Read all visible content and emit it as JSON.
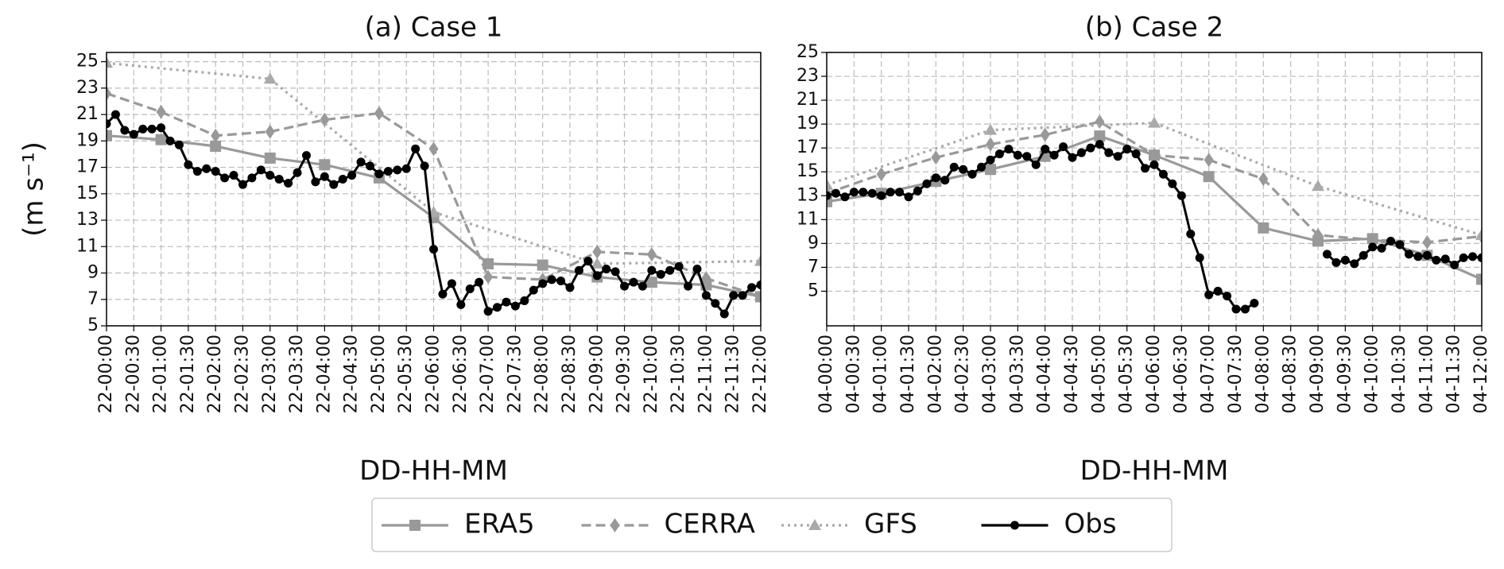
{
  "chart_data": [
    {
      "type": "line",
      "title": "(a) Case 1",
      "ylabel": "(m s⁻¹)",
      "xlabel": "DD-HH-MM",
      "xlim": [
        0,
        720
      ],
      "ylim": [
        5,
        25.7
      ],
      "yticks": [
        5,
        7,
        9,
        11,
        13,
        15,
        17,
        19,
        21,
        23,
        25
      ],
      "grid": true,
      "xticks": [
        {
          "value": 0,
          "label": "22-00:00"
        },
        {
          "value": 30,
          "label": "22-00:30"
        },
        {
          "value": 60,
          "label": "22-01:00"
        },
        {
          "value": 90,
          "label": "22-01:30"
        },
        {
          "value": 120,
          "label": "22-02:00"
        },
        {
          "value": 150,
          "label": "22-02:30"
        },
        {
          "value": 180,
          "label": "22-03:00"
        },
        {
          "value": 210,
          "label": "22-03:30"
        },
        {
          "value": 240,
          "label": "22-04:00"
        },
        {
          "value": 270,
          "label": "22-04:30"
        },
        {
          "value": 300,
          "label": "22-05:00"
        },
        {
          "value": 330,
          "label": "22-05:30"
        },
        {
          "value": 360,
          "label": "22-06:00"
        },
        {
          "value": 390,
          "label": "22-06:30"
        },
        {
          "value": 420,
          "label": "22-07:00"
        },
        {
          "value": 450,
          "label": "22-07:30"
        },
        {
          "value": 480,
          "label": "22-08:00"
        },
        {
          "value": 510,
          "label": "22-08:30"
        },
        {
          "value": 540,
          "label": "22-09:00"
        },
        {
          "value": 570,
          "label": "22-09:30"
        },
        {
          "value": 600,
          "label": "22-10:00"
        },
        {
          "value": 630,
          "label": "22-10:30"
        },
        {
          "value": 660,
          "label": "22-11:00"
        },
        {
          "value": 690,
          "label": "22-11:30"
        },
        {
          "value": 720,
          "label": "22-12:00"
        }
      ],
      "series": [
        {
          "name": "ERA5",
          "color": "#999999",
          "linestyle": "solid",
          "marker": "square",
          "x": [
            0,
            60,
            120,
            180,
            240,
            300,
            360,
            420,
            480,
            540,
            600,
            660,
            720
          ],
          "values": [
            19.4,
            19.1,
            18.6,
            17.7,
            17.2,
            16.2,
            13.2,
            9.7,
            9.6,
            8.7,
            8.3,
            8.1,
            7.2
          ]
        },
        {
          "name": "CERRA",
          "color": "#999999",
          "linestyle": "dashed",
          "marker": "diamond",
          "x": [
            0,
            60,
            120,
            180,
            240,
            300,
            360,
            420,
            480,
            540,
            600,
            660,
            720
          ],
          "values": [
            22.6,
            21.2,
            19.4,
            19.7,
            20.6,
            21.1,
            18.4,
            8.7,
            8.5,
            10.6,
            10.4,
            8.6,
            7.2
          ]
        },
        {
          "name": "GFS",
          "color": "#aaaaaa",
          "linestyle": "dotted",
          "marker": "triangle",
          "x": [
            0,
            180,
            360,
            540,
            720
          ],
          "values": [
            24.9,
            23.7,
            13.6,
            9.7,
            9.9
          ]
        },
        {
          "name": "Obs",
          "color": "#000000",
          "linestyle": "solid",
          "marker": "circle",
          "x": [
            0,
            10,
            20,
            30,
            40,
            50,
            60,
            70,
            80,
            90,
            100,
            110,
            120,
            130,
            140,
            150,
            160,
            170,
            180,
            190,
            200,
            210,
            220,
            230,
            240,
            250,
            260,
            270,
            280,
            290,
            300,
            310,
            320,
            330,
            340,
            350,
            360,
            370,
            380,
            390,
            400,
            410,
            420,
            430,
            440,
            450,
            460,
            470,
            480,
            490,
            500,
            510,
            520,
            530,
            540,
            550,
            560,
            570,
            580,
            590,
            600,
            610,
            620,
            630,
            640,
            650,
            660,
            670,
            680,
            690,
            700,
            710,
            720
          ],
          "values": [
            20.3,
            21.0,
            19.8,
            19.5,
            19.9,
            19.9,
            20.0,
            19.0,
            18.7,
            17.2,
            16.7,
            16.9,
            16.7,
            16.2,
            16.4,
            15.7,
            16.2,
            16.8,
            16.4,
            16.1,
            15.8,
            16.6,
            17.9,
            15.9,
            16.3,
            15.7,
            16.1,
            16.4,
            17.4,
            17.1,
            16.5,
            16.7,
            16.8,
            16.9,
            18.4,
            17.1,
            10.8,
            7.4,
            8.2,
            6.6,
            7.8,
            8.3,
            6.1,
            6.4,
            6.8,
            6.5,
            6.9,
            7.7,
            8.2,
            8.5,
            8.4,
            7.9,
            9.2,
            9.9,
            8.8,
            9.3,
            9.1,
            8.0,
            8.3,
            8.0,
            9.2,
            8.9,
            9.2,
            9.5,
            8.0,
            9.3,
            7.3,
            6.7,
            5.9,
            7.3,
            7.3,
            7.9,
            8.1
          ]
        }
      ]
    },
    {
      "type": "line",
      "title": "(b) Case 2",
      "xlabel": "DD-HH-MM",
      "xlim": [
        0,
        720
      ],
      "ylim": [
        2.1,
        25
      ],
      "yticks": [
        5,
        7,
        9,
        11,
        13,
        15,
        17,
        19,
        21,
        23,
        25
      ],
      "grid": true,
      "xticks": [
        {
          "value": 0,
          "label": "04-00:00"
        },
        {
          "value": 30,
          "label": "04-00:30"
        },
        {
          "value": 60,
          "label": "04-01:00"
        },
        {
          "value": 90,
          "label": "04-01:30"
        },
        {
          "value": 120,
          "label": "04-02:00"
        },
        {
          "value": 150,
          "label": "04-02:30"
        },
        {
          "value": 180,
          "label": "04-03:00"
        },
        {
          "value": 210,
          "label": "04-03:30"
        },
        {
          "value": 240,
          "label": "04-04:00"
        },
        {
          "value": 270,
          "label": "04-04:30"
        },
        {
          "value": 300,
          "label": "04-05:00"
        },
        {
          "value": 330,
          "label": "04-05:30"
        },
        {
          "value": 360,
          "label": "04-06:00"
        },
        {
          "value": 390,
          "label": "04-06:30"
        },
        {
          "value": 420,
          "label": "04-07:00"
        },
        {
          "value": 450,
          "label": "04-07:30"
        },
        {
          "value": 480,
          "label": "04-08:00"
        },
        {
          "value": 510,
          "label": "04-08:30"
        },
        {
          "value": 540,
          "label": "04-09:00"
        },
        {
          "value": 570,
          "label": "04-09:30"
        },
        {
          "value": 600,
          "label": "04-10:00"
        },
        {
          "value": 630,
          "label": "04-10:30"
        },
        {
          "value": 660,
          "label": "04-11:00"
        },
        {
          "value": 690,
          "label": "04-11:30"
        },
        {
          "value": 720,
          "label": "04-12:00"
        }
      ],
      "series": [
        {
          "name": "ERA5",
          "color": "#999999",
          "linestyle": "solid",
          "marker": "square",
          "x": [
            0,
            60,
            120,
            180,
            240,
            300,
            360,
            420,
            480,
            540,
            600,
            660,
            720
          ],
          "values": [
            12.5,
            13.2,
            14.2,
            15.2,
            16.3,
            18.0,
            16.4,
            14.6,
            10.3,
            9.2,
            9.4,
            8.0,
            6.0
          ]
        },
        {
          "name": "CERRA",
          "color": "#999999",
          "linestyle": "dashed",
          "marker": "diamond",
          "x": [
            0,
            60,
            120,
            180,
            240,
            300,
            360,
            420,
            480,
            540,
            600,
            660,
            720
          ],
          "values": [
            13.2,
            14.8,
            16.2,
            17.3,
            18.1,
            19.2,
            16.4,
            16.0,
            14.4,
            9.7,
            9.3,
            9.1,
            9.6
          ]
        },
        {
          "name": "GFS",
          "color": "#aaaaaa",
          "linestyle": "dotted",
          "marker": "triangle",
          "x": [
            0,
            180,
            360,
            540,
            720
          ],
          "values": [
            13.9,
            18.5,
            19.1,
            13.8,
            9.7
          ]
        },
        {
          "name": "Obs",
          "color": "#000000",
          "linestyle": "solid",
          "marker": "circle",
          "x": [
            0,
            10,
            20,
            30,
            40,
            50,
            60,
            70,
            80,
            90,
            100,
            110,
            120,
            130,
            140,
            150,
            160,
            170,
            180,
            190,
            200,
            210,
            220,
            230,
            240,
            250,
            260,
            270,
            280,
            290,
            300,
            310,
            320,
            330,
            340,
            350,
            360,
            370,
            380,
            390,
            400,
            410,
            420,
            430,
            440,
            450,
            460,
            470,
            480,
            490,
            500,
            510,
            520,
            530,
            540,
            550,
            560,
            570,
            580,
            590,
            600,
            610,
            620,
            630,
            640,
            650,
            660,
            670,
            680,
            690,
            700,
            710,
            720
          ],
          "values": [
            13.0,
            13.2,
            12.9,
            13.3,
            13.3,
            13.2,
            13.0,
            13.3,
            13.3,
            12.9,
            13.4,
            14.0,
            14.5,
            14.3,
            15.4,
            15.2,
            14.8,
            15.4,
            16.0,
            16.5,
            16.9,
            16.4,
            16.3,
            15.6,
            16.9,
            16.4,
            17.1,
            16.2,
            16.6,
            17.0,
            17.3,
            16.6,
            16.3,
            16.9,
            16.5,
            15.3,
            15.6,
            14.8,
            14.0,
            13.0,
            9.8,
            7.8,
            4.7,
            5.0,
            4.6,
            3.5,
            3.5,
            4.0,
            null,
            null,
            null,
            null,
            null,
            null,
            null,
            8.1,
            7.4,
            7.6,
            7.3,
            8.0,
            8.7,
            8.6,
            9.2,
            8.9,
            8.1,
            7.9,
            8.0,
            7.6,
            7.7,
            7.2,
            7.8,
            7.9,
            7.8
          ]
        }
      ]
    }
  ]
}
